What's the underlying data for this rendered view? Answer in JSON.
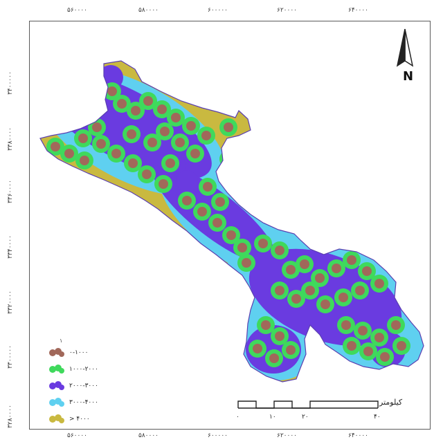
{
  "top_ticks": [
    "۵۶۰۰۰۰",
    "۵۸۰۰۰۰",
    "۶۰۰۰۰۰",
    "۶۲۰۰۰۰",
    "۶۴۰۰۰۰"
  ],
  "bottom_ticks": [
    "۵۶۰۰۰۰",
    "۵۸۰۰۰۰",
    "۶۰۰۰۰۰",
    "۶۲۰۰۰۰",
    "۶۴۰۰۰۰"
  ],
  "left_ticks": [
    "۳۴۰۰۰۰۰",
    "۳۳۸۰۰۰۰",
    "۳۳۶۰۰۰۰",
    "۳۳۴۰۰۰۰",
    "۳۳۲۰۰۰۰",
    "۳۳۰۰۰۰۰",
    "۳۲۸۰۰۰۰"
  ],
  "north_arrow": {
    "label": "N"
  },
  "legend": {
    "title": "۱",
    "items": [
      {
        "label": "۰-۱۰۰۰",
        "color": "#a1685a"
      },
      {
        "label": "۱۰۰۰-۲۰۰۰",
        "color": "#3fd95c"
      },
      {
        "label": "۲۰۰۰-۳۰۰۰",
        "color": "#6a3be0"
      },
      {
        "label": "۳۰۰۰-۴۰۰۰",
        "color": "#5fd0f0"
      },
      {
        "label": "> ۴۰۰۰",
        "color": "#c9b940"
      }
    ]
  },
  "scale_bar": {
    "unit": "کیلومتر",
    "labels": [
      "۰",
      "۱۰",
      "۲۰",
      "۴۰"
    ]
  },
  "colors": {
    "zone_0_1000": "#a1685a",
    "zone_1000_2000": "#3fd95c",
    "zone_2000_3000": "#6a3be0",
    "zone_3000_4000": "#5fd0f0",
    "zone_over_4000": "#c9b940"
  }
}
